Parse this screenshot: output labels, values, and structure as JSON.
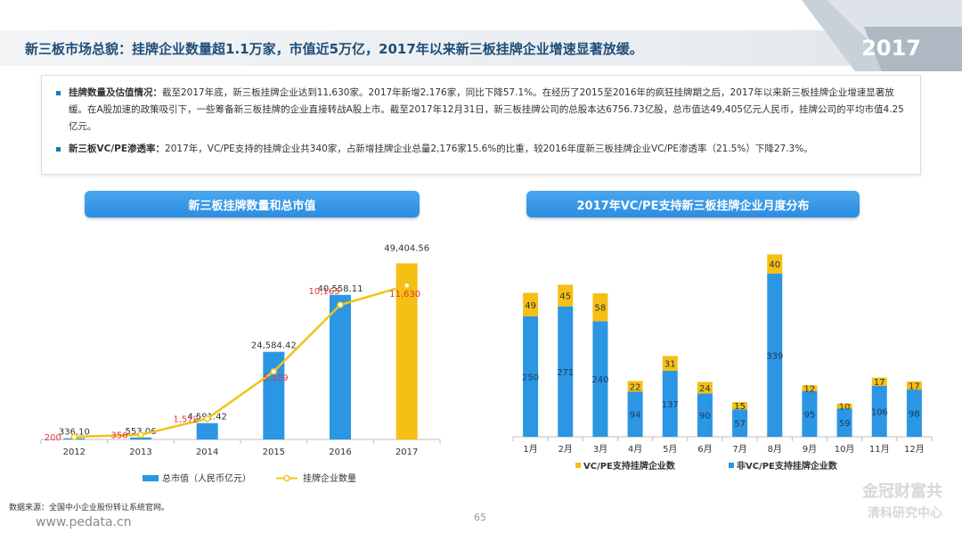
{
  "header": {
    "title": "新三板市场总貌：挂牌企业数量超1.1万家，市值近5万亿，2017年以来新三板挂牌企业增速显著放缓。",
    "year_badge": "2017"
  },
  "summary": {
    "item1_key": "挂牌数量及估值情况：",
    "item1_text": "截至2017年底，新三板挂牌企业达到11,630家。2017年新增2,176家，同比下降57.1%。在经历了2015至2016年的疯狂挂牌期之后，2017年以来新三板挂牌企业增速显著放缓。在A股加速的政策吸引下，一些筹备新三板挂牌的企业直接转战A股上市。截至2017年12月31日，新三板挂牌公司的总股本达6756.73亿股，总市值达49,405亿元人民币，挂牌公司的平均市值4.25亿元。",
    "item2_key": "新三板VC/PE渗透率：",
    "item2_text": "2017年，VC/PE支持的挂牌企业共340家，占新增挂牌企业总量2,176家15.6%的比重，较2016年度新三板挂牌企业VC/PE渗透率（21.5%）下降27.3%。"
  },
  "colors": {
    "bar_blue": "#2b96e3",
    "bar_yellow": "#f5bf14",
    "line_yellow": "#f0c419",
    "red_label": "#e03b3b",
    "title_blue": "#1f4e79"
  },
  "chart_data": [
    {
      "type": "bar",
      "title": "新三板挂牌数量和总市值",
      "categories": [
        "2012",
        "2013",
        "2014",
        "2015",
        "2016",
        "2017"
      ],
      "series": [
        {
          "name": "总市值（人民币亿元）",
          "kind": "bar",
          "values": [
            336.1,
            553.06,
            4591.42,
            24584.42,
            40558.11,
            49404.56
          ],
          "labels": [
            "336.10",
            "553.06",
            "4,591.42",
            "24,584.42",
            "40,558.11",
            "49,404.56"
          ],
          "ylim": [
            0,
            52000
          ]
        },
        {
          "name": "挂牌企业数量",
          "kind": "line",
          "values": [
            200,
            356,
            1572,
            5129,
            10163,
            11630
          ],
          "labels": [
            "200",
            "356",
            "1,572",
            "5,129",
            "10,163",
            "11,630"
          ],
          "ylim": [
            0,
            14000
          ]
        }
      ],
      "highlight_category": "2017",
      "legend": "bottom",
      "grid": false
    },
    {
      "type": "bar",
      "stacked": true,
      "title": "2017年VC/PE支持新三板挂牌企业月度分布",
      "categories": [
        "1月",
        "2月",
        "3月",
        "4月",
        "5月",
        "6月",
        "7月",
        "8月",
        "9月",
        "10月",
        "11月",
        "12月"
      ],
      "series": [
        {
          "name": "非VC/PE支持挂牌企业数",
          "values": [
            250,
            271,
            240,
            94,
            137,
            90,
            57,
            339,
            95,
            59,
            106,
            98
          ]
        },
        {
          "name": "VC/PE支持挂牌企业数",
          "values": [
            49,
            45,
            58,
            22,
            31,
            24,
            15,
            40,
            12,
            10,
            17,
            17
          ]
        }
      ],
      "ylim": [
        0,
        400
      ],
      "legend": "bottom",
      "grid": false
    }
  ],
  "footer": {
    "source": "数据来源：全国中小企业股份转让系统官网。",
    "url": "www.pedata.cn",
    "page": "65",
    "watermark_line1": "金冠财富共",
    "watermark_line2": "清科研究中心"
  }
}
